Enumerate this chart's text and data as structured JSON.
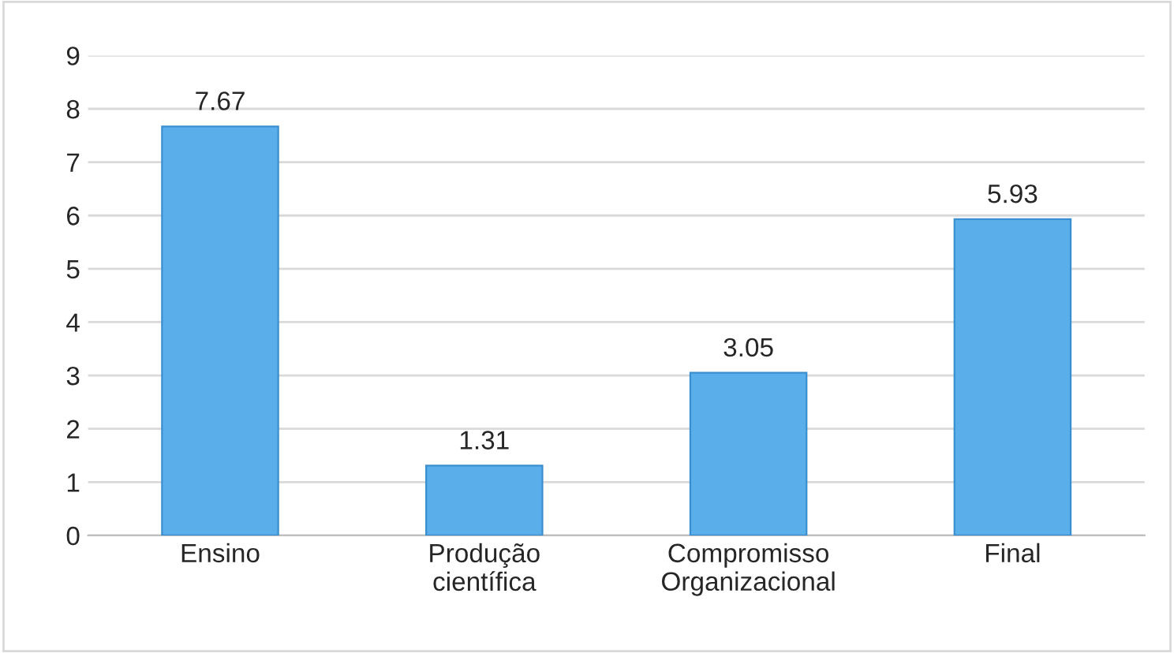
{
  "chart_data": {
    "type": "bar",
    "categories": [
      "Ensino",
      "Produção\ncientífica",
      "Compromisso\nOrganizacional",
      "Final"
    ],
    "values": [
      7.67,
      1.31,
      3.05,
      5.93
    ],
    "color": "#5aaeea",
    "ylim": [
      0,
      9
    ],
    "yticks": [
      0,
      1,
      2,
      3,
      4,
      5,
      6,
      7,
      8,
      9
    ],
    "grid": "y",
    "data_labels": true,
    "legend": false
  }
}
